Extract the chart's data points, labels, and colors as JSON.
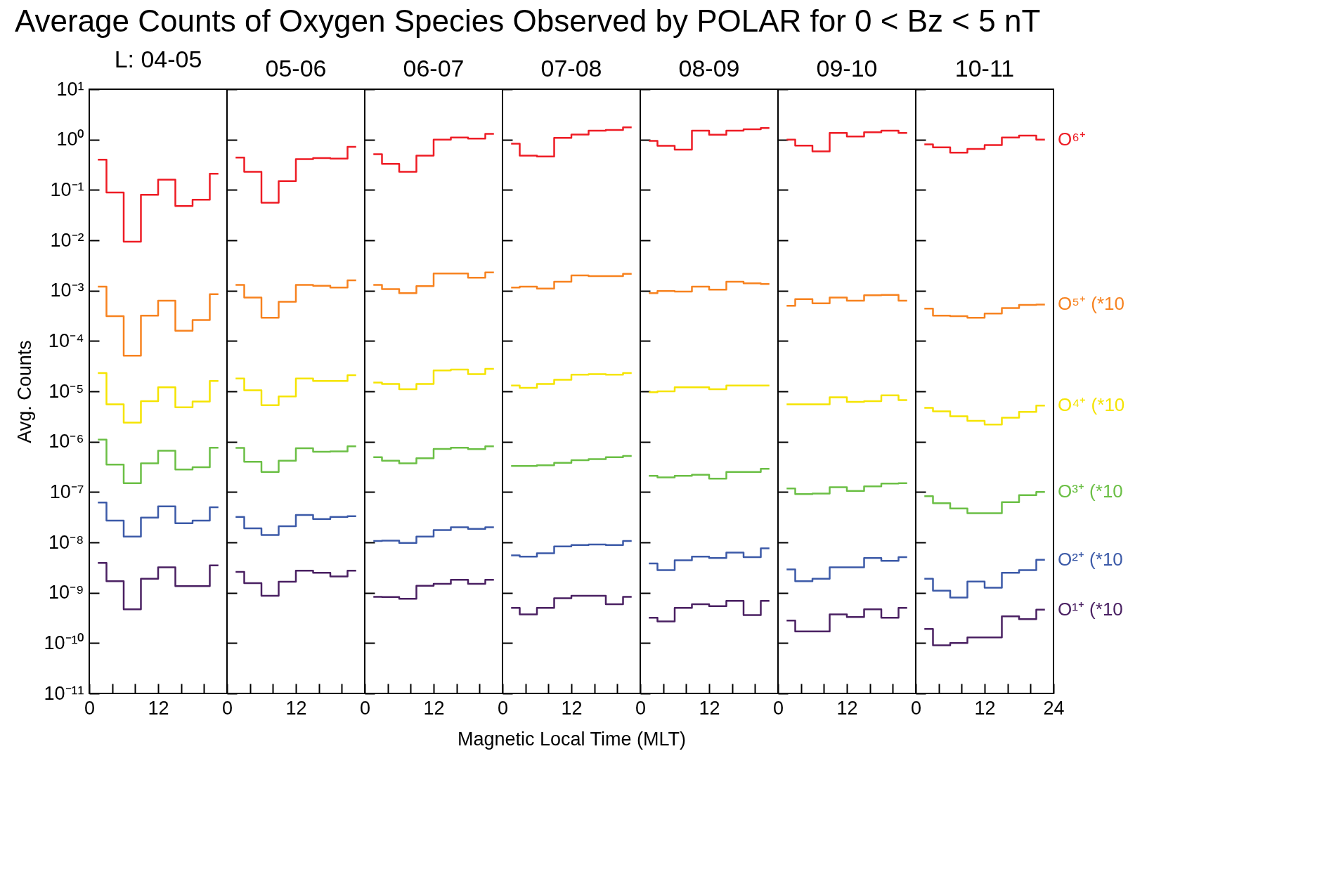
{
  "chart_data": [
    {
      "type": "step",
      "title": "Average Counts of Oxygen Species Observed by POLAR for 0 < Bz < 5 nT",
      "subtitle": "L: 04-05",
      "ylabel": "Avg. Counts",
      "log": true,
      "x": [
        1.5,
        4.5,
        7.5,
        10.5,
        13.5,
        16.5,
        19.5,
        22.5
      ],
      "xlim": [
        0,
        24
      ],
      "xticks": [
        0,
        {
          "value": 4,
          "label": null
        },
        {
          "value": 8,
          "label": null
        },
        12,
        {
          "value": 16,
          "label": null
        },
        {
          "value": 20,
          "label": null
        }
      ],
      "ylim": [
        1e-11,
        10
      ],
      "yticks": [
        {
          "value": 1e-11,
          "label": "10⁻¹¹"
        },
        {
          "value": 1e-10,
          "label": "10⁻¹⁰"
        },
        {
          "value": 1e-09,
          "label": "10⁻⁹"
        },
        {
          "value": 1e-08,
          "label": "10⁻⁸"
        },
        {
          "value": 1e-07,
          "label": "10⁻⁷"
        },
        {
          "value": 1e-06,
          "label": "10⁻⁶"
        },
        {
          "value": 1e-05,
          "label": "10⁻⁵"
        },
        {
          "value": 0.0001,
          "label": "10⁻⁴"
        },
        {
          "value": 0.001,
          "label": "10⁻³"
        },
        {
          "value": 0.01,
          "label": "10⁻²"
        },
        {
          "value": 0.1,
          "label": "10⁻¹"
        },
        {
          "value": 1,
          "label": "10⁰"
        },
        {
          "value": 10,
          "label": "10¹"
        }
      ],
      "series": [
        {
          "color": "#ee1c25",
          "values": [
            0.4,
            0.089,
            0.0094,
            0.08,
            0.16,
            0.048,
            0.064,
            0.21
          ]
        },
        {
          "color": "#f7821f",
          "values": [
            0.0012,
            0.00031,
            5.1e-05,
            0.00032,
            0.00063,
            0.00016,
            0.00026,
            0.00085
          ]
        },
        {
          "color": "#f5e400",
          "values": [
            2.3e-05,
            5.5e-06,
            2.4e-06,
            6.4e-06,
            1.2e-05,
            4.8e-06,
            6.3e-06,
            1.6e-05
          ]
        },
        {
          "color": "#6bbf45",
          "values": [
            1.1e-06,
            3.5e-07,
            1.5e-07,
            3.7e-07,
            6.6e-07,
            2.8e-07,
            3.1e-07,
            7.6e-07
          ]
        },
        {
          "color": "#3c5aa8",
          "values": [
            6.2e-08,
            2.7e-08,
            1.3e-08,
            3.1e-08,
            5.2e-08,
            2.4e-08,
            2.7e-08,
            5e-08
          ]
        },
        {
          "color": "#4a2062",
          "values": [
            3.9e-09,
            1.7e-09,
            4.7e-10,
            1.9e-09,
            3.2e-09,
            1.35e-09,
            1.35e-09,
            3.5e-09
          ]
        }
      ]
    },
    {
      "type": "step",
      "subtitle": "05-06",
      "log": true,
      "tick_labels": "x",
      "x": [
        1.5,
        4.5,
        7.5,
        10.5,
        13.5,
        16.5,
        19.5,
        22.5
      ],
      "xlim": [
        0,
        24
      ],
      "xticks": [
        0,
        {
          "value": 4,
          "label": null
        },
        {
          "value": 8,
          "label": null
        },
        12,
        {
          "value": 16,
          "label": null
        },
        {
          "value": 20,
          "label": null
        }
      ],
      "ylim": [
        1e-11,
        10
      ],
      "series": [
        {
          "color": "#ee1c25",
          "values": [
            0.44,
            0.23,
            0.056,
            0.15,
            0.41,
            0.43,
            0.42,
            0.72
          ]
        },
        {
          "color": "#f7821f",
          "values": [
            0.0013,
            0.00073,
            0.00029,
            0.0006,
            0.0013,
            0.00125,
            0.00115,
            0.0016
          ]
        },
        {
          "color": "#f5e400",
          "values": [
            1.8e-05,
            1.05e-05,
            5.3e-06,
            7.9e-06,
            1.8e-05,
            1.6e-05,
            1.6e-05,
            2.1e-05
          ]
        },
        {
          "color": "#6bbf45",
          "values": [
            7.5e-07,
            4e-07,
            2.5e-07,
            4.2e-07,
            7.4e-07,
            6.3e-07,
            6.4e-07,
            8.1e-07
          ]
        },
        {
          "color": "#3c5aa8",
          "values": [
            3.2e-08,
            1.9e-08,
            1.4e-08,
            2.1e-08,
            3.5e-08,
            2.9e-08,
            3.2e-08,
            3.3e-08
          ]
        },
        {
          "color": "#4a2062",
          "values": [
            2.6e-09,
            1.55e-09,
            8.7e-10,
            1.66e-09,
            2.75e-09,
            2.5e-09,
            2.1e-09,
            2.75e-09
          ]
        }
      ]
    },
    {
      "type": "step",
      "subtitle": "06-07",
      "log": true,
      "tick_labels": "x",
      "x": [
        1.5,
        4.5,
        7.5,
        10.5,
        13.5,
        16.5,
        19.5,
        22.5
      ],
      "xlim": [
        0,
        24
      ],
      "xticks": [
        0,
        {
          "value": 4,
          "label": null
        },
        {
          "value": 8,
          "label": null
        },
        12,
        {
          "value": 16,
          "label": null
        },
        {
          "value": 20,
          "label": null
        }
      ],
      "ylim": [
        1e-11,
        10
      ],
      "series": [
        {
          "color": "#ee1c25",
          "values": [
            0.51,
            0.33,
            0.23,
            0.48,
            1.0,
            1.1,
            1.05,
            1.3
          ]
        },
        {
          "color": "#f7821f",
          "values": [
            0.0013,
            0.00107,
            0.00089,
            0.00123,
            0.0022,
            0.0022,
            0.0018,
            0.0023
          ]
        },
        {
          "color": "#f5e400",
          "values": [
            1.5e-05,
            1.4e-05,
            1.1e-05,
            1.4e-05,
            2.6e-05,
            2.7e-05,
            2.2e-05,
            2.8e-05
          ]
        },
        {
          "color": "#6bbf45",
          "values": [
            4.9e-07,
            4.2e-07,
            3.7e-07,
            4.7e-07,
            7.2e-07,
            7.6e-07,
            7.1e-07,
            8.1e-07
          ]
        },
        {
          "color": "#3c5aa8",
          "values": [
            1.07e-08,
            1.08e-08,
            9.8e-09,
            1.3e-08,
            1.75e-08,
            2e-08,
            1.85e-08,
            2e-08
          ]
        },
        {
          "color": "#4a2062",
          "values": [
            8.3e-10,
            8.2e-10,
            7.6e-10,
            1.38e-09,
            1.5e-09,
            1.8e-09,
            1.5e-09,
            1.8e-09
          ]
        }
      ]
    },
    {
      "type": "step",
      "subtitle": "07-08",
      "xlabel": "Magnetic Local Time (MLT)",
      "log": true,
      "tick_labels": "x",
      "x": [
        1.5,
        4.5,
        7.5,
        10.5,
        13.5,
        16.5,
        19.5,
        22.5
      ],
      "xlim": [
        0,
        24
      ],
      "xticks": [
        0,
        {
          "value": 4,
          "label": null
        },
        {
          "value": 8,
          "label": null
        },
        12,
        {
          "value": 16,
          "label": null
        },
        {
          "value": 20,
          "label": null
        }
      ],
      "ylim": [
        1e-11,
        10
      ],
      "series": [
        {
          "color": "#ee1c25",
          "values": [
            0.83,
            0.48,
            0.46,
            1.08,
            1.26,
            1.5,
            1.55,
            1.75
          ]
        },
        {
          "color": "#f7821f",
          "values": [
            0.00115,
            0.0012,
            0.0011,
            0.0015,
            0.002,
            0.00195,
            0.00195,
            0.00215
          ]
        },
        {
          "color": "#f5e400",
          "values": [
            1.3e-05,
            1.17e-05,
            1.4e-05,
            1.7e-05,
            2.15e-05,
            2.2e-05,
            2.15e-05,
            2.3e-05
          ]
        },
        {
          "color": "#6bbf45",
          "values": [
            3.3e-07,
            3.3e-07,
            3.4e-07,
            3.8e-07,
            4.3e-07,
            4.5e-07,
            4.9e-07,
            5.2e-07
          ]
        },
        {
          "color": "#3c5aa8",
          "values": [
            5.5e-09,
            5.2e-09,
            6.1e-09,
            8.3e-09,
            8.9e-09,
            9.1e-09,
            8.9e-09,
            1.07e-08
          ]
        },
        {
          "color": "#4a2062",
          "values": [
            5e-10,
            3.7e-10,
            5e-10,
            7.8e-10,
            8.7e-10,
            8.7e-10,
            5.9e-10,
            8.3e-10
          ]
        }
      ]
    },
    {
      "type": "step",
      "subtitle": "08-09",
      "log": true,
      "tick_labels": "x",
      "x": [
        1.5,
        4.5,
        7.5,
        10.5,
        13.5,
        16.5,
        19.5,
        22.5
      ],
      "xlim": [
        0,
        24
      ],
      "xticks": [
        0,
        {
          "value": 4,
          "label": null
        },
        {
          "value": 8,
          "label": null
        },
        12,
        {
          "value": 16,
          "label": null
        },
        {
          "value": 20,
          "label": null
        }
      ],
      "ylim": [
        1e-11,
        10
      ],
      "series": [
        {
          "color": "#ee1c25",
          "values": [
            0.94,
            0.75,
            0.63,
            1.5,
            1.25,
            1.5,
            1.6,
            1.7
          ]
        },
        {
          "color": "#f7821f",
          "values": [
            0.00089,
            0.00098,
            0.00096,
            0.0012,
            0.00105,
            0.0015,
            0.0014,
            0.00135
          ]
        },
        {
          "color": "#f5e400",
          "values": [
            9.6e-06,
            1e-05,
            1.2e-05,
            1.2e-05,
            1.1e-05,
            1.3e-05,
            1.3e-05,
            1.3e-05
          ]
        },
        {
          "color": "#6bbf45",
          "values": [
            2.1e-07,
            1.95e-07,
            2.1e-07,
            2.2e-07,
            1.85e-07,
            2.5e-07,
            2.5e-07,
            2.9e-07
          ]
        },
        {
          "color": "#3c5aa8",
          "values": [
            3.8e-09,
            2.8e-09,
            4.4e-09,
            5.2e-09,
            4.9e-09,
            6.3e-09,
            5.1e-09,
            7.6e-09
          ]
        },
        {
          "color": "#4a2062",
          "values": [
            3.2e-10,
            2.7e-10,
            5e-10,
            5.9e-10,
            5.4e-10,
            6.9e-10,
            3.6e-10,
            6.9e-10
          ]
        }
      ]
    },
    {
      "type": "step",
      "subtitle": "09-10",
      "log": true,
      "tick_labels": "x",
      "x": [
        1.5,
        4.5,
        7.5,
        10.5,
        13.5,
        16.5,
        19.5,
        22.5
      ],
      "xlim": [
        0,
        24
      ],
      "xticks": [
        0,
        {
          "value": 4,
          "label": null
        },
        {
          "value": 8,
          "label": null
        },
        12,
        {
          "value": 16,
          "label": null
        },
        {
          "value": 20,
          "label": null
        }
      ],
      "ylim": [
        1e-11,
        10
      ],
      "series": [
        {
          "color": "#ee1c25",
          "values": [
            1.0,
            0.76,
            0.58,
            1.35,
            1.15,
            1.4,
            1.5,
            1.35
          ]
        },
        {
          "color": "#f7821f",
          "values": [
            0.0005,
            0.00068,
            0.00056,
            0.00073,
            0.00063,
            0.00081,
            0.00082,
            0.00063
          ]
        },
        {
          "color": "#f5e400",
          "values": [
            5.5e-06,
            5.5e-06,
            5.5e-06,
            7.6e-06,
            6.2e-06,
            6.4e-06,
            8.3e-06,
            6.7e-06
          ]
        },
        {
          "color": "#6bbf45",
          "values": [
            1.18e-07,
            9.1e-08,
            9.3e-08,
            1.25e-07,
            1.05e-07,
            1.3e-07,
            1.48e-07,
            1.5e-07
          ]
        },
        {
          "color": "#3c5aa8",
          "values": [
            2.9e-09,
            1.7e-09,
            1.9e-09,
            3.2e-09,
            3.2e-09,
            4.9e-09,
            4.3e-09,
            5.1e-09
          ]
        },
        {
          "color": "#4a2062",
          "values": [
            2.8e-10,
            1.7e-10,
            1.7e-10,
            3.7e-10,
            3.3e-10,
            4.7e-10,
            3.2e-10,
            5e-10
          ]
        }
      ]
    },
    {
      "type": "step",
      "subtitle": "10-11",
      "log": true,
      "tick_labels": "x",
      "x": [
        1.5,
        4.5,
        7.5,
        10.5,
        13.5,
        16.5,
        19.5,
        22.5
      ],
      "xlim": [
        0,
        24
      ],
      "xticks": [
        0,
        {
          "value": 4,
          "label": null
        },
        {
          "value": 8,
          "label": null
        },
        12,
        {
          "value": 16,
          "label": null
        },
        {
          "value": 20,
          "label": null
        },
        24
      ],
      "ylim": [
        1e-11,
        10
      ],
      "series": [
        {
          "name": "O⁶⁺",
          "color": "#ee1c25",
          "values": [
            0.8,
            0.7,
            0.55,
            0.65,
            0.78,
            1.1,
            1.2,
            1.0
          ]
        },
        {
          "name": "O⁵⁺ (*10",
          "color": "#f7821f",
          "values": [
            0.00044,
            0.00032,
            0.00031,
            0.00029,
            0.00035,
            0.00045,
            0.00052,
            0.00053
          ]
        },
        {
          "name": "O⁴⁺ (*10",
          "color": "#f5e400",
          "values": [
            4.7e-06,
            4e-06,
            3.2e-06,
            2.6e-06,
            2.2e-06,
            3e-06,
            3.9e-06,
            5.2e-06
          ]
        },
        {
          "name": "O³⁺ (*10",
          "color": "#6bbf45",
          "values": [
            8.3e-08,
            6e-08,
            4.7e-08,
            3.8e-08,
            3.8e-08,
            6.3e-08,
            8.7e-08,
            1e-07
          ]
        },
        {
          "name": "O²⁺ (*10",
          "color": "#3c5aa8",
          "values": [
            1.9e-09,
            1.1e-09,
            8e-10,
            1.67e-09,
            1.26e-09,
            2.5e-09,
            2.8e-09,
            4.5e-09
          ]
        },
        {
          "name": "O¹⁺ (*10",
          "color": "#4a2062",
          "values": [
            1.9e-10,
            9e-11,
            1e-10,
            1.3e-10,
            1.3e-10,
            3.4e-10,
            3e-10,
            4.6e-10
          ]
        }
      ]
    }
  ]
}
